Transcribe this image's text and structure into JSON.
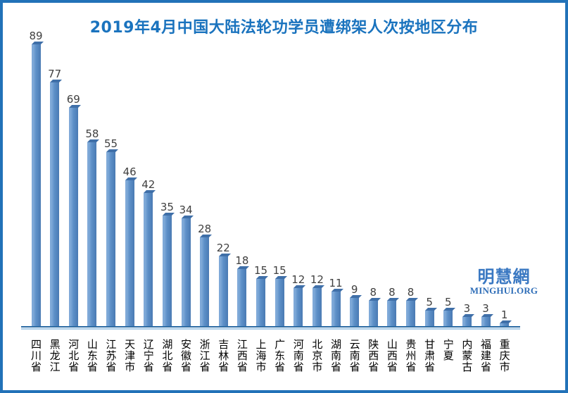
{
  "chart_data": {
    "type": "bar",
    "title": "2019年4月中国大陆法轮功学员遭绑架人次按地区分布",
    "categories": [
      "四川省",
      "黑龙江",
      "河北省",
      "山东省",
      "江苏省",
      "天津市",
      "辽宁省",
      "湖北省",
      "安徽省",
      "浙江省",
      "吉林省",
      "江西省",
      "上海市",
      "广东省",
      "河南省",
      "北京市",
      "湖南省",
      "云南省",
      "陕西省",
      "山西省",
      "贵州省",
      "甘肃省",
      "宁夏",
      "内蒙古",
      "福建省",
      "重庆市"
    ],
    "values": [
      89,
      77,
      69,
      58,
      55,
      46,
      42,
      35,
      34,
      28,
      22,
      18,
      15,
      15,
      12,
      12,
      11,
      9,
      8,
      8,
      8,
      5,
      5,
      3,
      3,
      1
    ],
    "xlabel": "",
    "ylabel": "",
    "ylim": [
      0,
      89
    ],
    "grid": false,
    "legend": "none",
    "value_labels": true,
    "category_orientation": "vertical"
  },
  "watermark": {
    "line1": "明慧網",
    "line2": "MINGHUI.ORG"
  },
  "colors": {
    "title": "#1a73be",
    "frame_border": "#2272b8",
    "bar_face": "#5d90c8",
    "bar_highlight": "#7fa9d8",
    "bar_cap": "#3f6fa8",
    "axis_dark": "#2e6da4",
    "axis_light": "#a9cbe8",
    "value_label": "#404040",
    "category_label": "#000000",
    "watermark": "#2f6eb8",
    "background": "#ffffff"
  }
}
